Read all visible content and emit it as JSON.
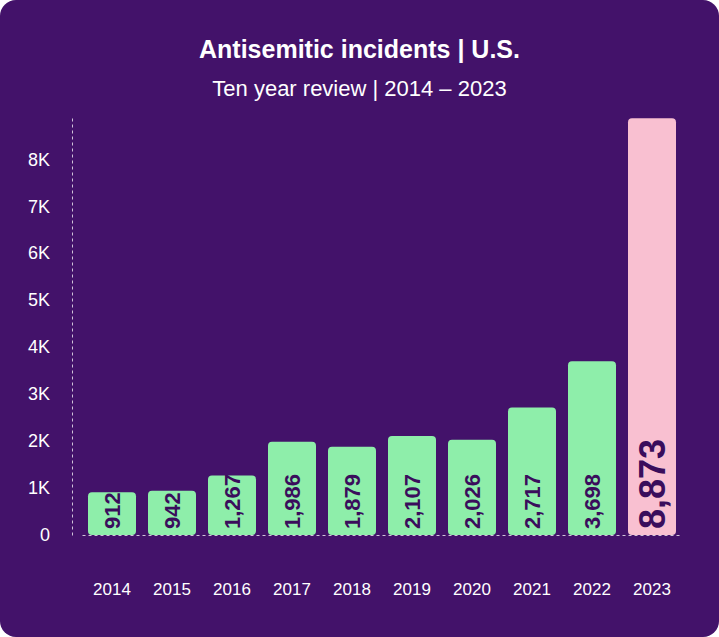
{
  "chart_data": {
    "type": "bar",
    "title": "Antisemitic incidents | U.S.",
    "subtitle": "Ten year review | 2014 – 2023",
    "categories": [
      "2014",
      "2015",
      "2016",
      "2017",
      "2018",
      "2019",
      "2020",
      "2021",
      "2022",
      "2023"
    ],
    "values": [
      912,
      942,
      1267,
      1986,
      1879,
      2107,
      2026,
      2717,
      3698,
      8873
    ],
    "value_labels": [
      "912",
      "942",
      "1,267",
      "1,986",
      "1,879",
      "2,107",
      "2,026",
      "2,717",
      "3,698",
      "8,873"
    ],
    "colors": [
      "#8eeeaa",
      "#8eeeaa",
      "#8eeeaa",
      "#8eeeaa",
      "#8eeeaa",
      "#8eeeaa",
      "#8eeeaa",
      "#8eeeaa",
      "#8eeeaa",
      "#f9c0d1"
    ],
    "ylim": [
      0,
      8900
    ],
    "yticks": [
      0,
      {
        "value": 1000,
        "label": "1K"
      },
      {
        "value": 2000,
        "label": "2K"
      },
      {
        "value": 3000,
        "label": "3K"
      },
      {
        "value": 4000,
        "label": "4K"
      },
      {
        "value": 5000,
        "label": "5K"
      },
      {
        "value": 6000,
        "label": "6K"
      },
      {
        "value": 7000,
        "label": "7K"
      },
      {
        "value": 8000,
        "label": "8K"
      }
    ],
    "grid": false,
    "data_labels": true
  }
}
